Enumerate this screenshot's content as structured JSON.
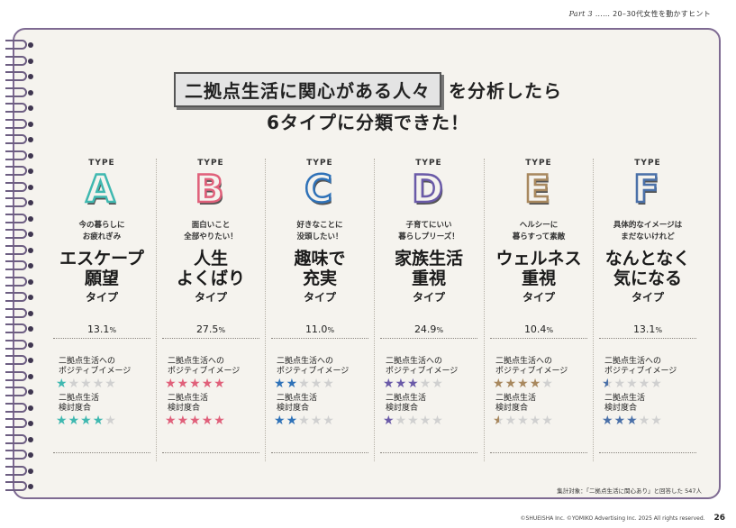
{
  "header": {
    "part": "Part 3",
    "dots": "……",
    "text": "20–30代女性を動かすヒント"
  },
  "title": {
    "boxed": "二拠点生活に関心がある人々",
    "rest": "を分析したら",
    "line2": "6タイプに分類できた！"
  },
  "types": [
    {
      "label": "TYPE",
      "letter": "A",
      "color": "#3fb8b0",
      "tagline1": "今の暮らしに",
      "tagline2": "お疲れぎみ",
      "name1": "エスケープ",
      "name2": "願望",
      "suffix": "タイプ",
      "pct": "13.1",
      "pct_unit": "%",
      "metric1_l1": "二拠点生活への",
      "metric1_l2": "ポジティブイメージ",
      "positive": 1,
      "metric2_l1": "二拠点生活",
      "metric2_l2": "検討度合",
      "consider": 4
    },
    {
      "label": "TYPE",
      "letter": "B",
      "color": "#e0607a",
      "tagline1": "面白いこと",
      "tagline2": "全部やりたい！",
      "name1": "人生",
      "name2": "よくばり",
      "suffix": "タイプ",
      "pct": "27.5",
      "pct_unit": "%",
      "metric1_l1": "二拠点生活への",
      "metric1_l2": "ポジティブイメージ",
      "positive": 5,
      "metric2_l1": "二拠点生活",
      "metric2_l2": "検討度合",
      "consider": 5
    },
    {
      "label": "TYPE",
      "letter": "C",
      "color": "#2f72b8",
      "tagline1": "好きなことに",
      "tagline2": "没頭したい！",
      "name1": "趣味で",
      "name2": "充実",
      "suffix": "タイプ",
      "pct": "11.0",
      "pct_unit": "%",
      "metric1_l1": "二拠点生活への",
      "metric1_l2": "ポジティブイメージ",
      "positive": 2,
      "metric2_l1": "二拠点生活",
      "metric2_l2": "検討度合",
      "consider": 2
    },
    {
      "label": "TYPE",
      "letter": "D",
      "color": "#6a5aa8",
      "tagline1": "子育てにいい",
      "tagline2": "暮らしプリーズ！",
      "name1": "家族生活",
      "name2": "重視",
      "suffix": "タイプ",
      "pct": "24.9",
      "pct_unit": "%",
      "metric1_l1": "二拠点生活への",
      "metric1_l2": "ポジティブイメージ",
      "positive": 3,
      "metric2_l1": "二拠点生活",
      "metric2_l2": "検討度合",
      "consider": 1
    },
    {
      "label": "TYPE",
      "letter": "E",
      "color": "#a8885e",
      "tagline1": "ヘルシーに",
      "tagline2": "暮らすって素敵",
      "name1": "ウェルネス",
      "name2": "重視",
      "suffix": "タイプ",
      "pct": "10.4",
      "pct_unit": "%",
      "metric1_l1": "二拠点生活への",
      "metric1_l2": "ポジティブイメージ",
      "positive": 4,
      "metric2_l1": "二拠点生活",
      "metric2_l2": "検討度合",
      "consider": 0.5
    },
    {
      "label": "TYPE",
      "letter": "F",
      "color": "#4a70a8",
      "tagline1": "具体的なイメージは",
      "tagline2": "まだないけれど",
      "name1": "なんとなく",
      "name2": "気になる",
      "suffix": "タイプ",
      "pct": "13.1",
      "pct_unit": "%",
      "metric1_l1": "二拠点生活への",
      "metric1_l2": "ポジティブイメージ",
      "positive": 0.5,
      "metric2_l1": "二拠点生活",
      "metric2_l2": "検討度合",
      "consider": 3
    }
  ],
  "footer": {
    "survey": "集計対象：「二拠点生活に関心あり」と回答した 547人",
    "copyright": "©SHUEISHA Inc.  ©YOMIKO Advertising Inc.  2025 All rights reserved.",
    "page": "26"
  }
}
